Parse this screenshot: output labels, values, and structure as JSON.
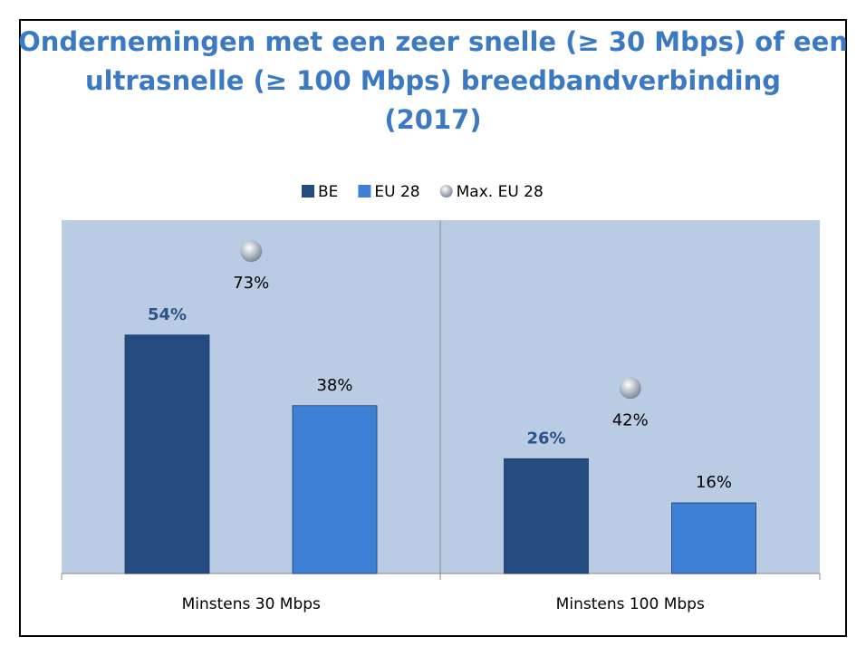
{
  "chart_data": {
    "type": "bar",
    "title_lines": [
      "Ondernemingen met een zeer snelle (≥ 30 Mbps) of een",
      "ultrasnelle (≥ 100 Mbps) breedbandverbinding",
      "(2017)"
    ],
    "categories": [
      "Minstens 30 Mbps",
      "Minstens 100 Mbps"
    ],
    "series": [
      {
        "name": "BE",
        "color": "#234b80",
        "marker": "bar",
        "values": [
          54,
          26
        ],
        "value_labels": [
          "54%",
          "26%"
        ]
      },
      {
        "name": "EU 28",
        "color": "#3d80d6",
        "marker": "bar",
        "values": [
          38,
          16
        ],
        "value_labels": [
          "38%",
          "16%"
        ]
      },
      {
        "name": "Max. EU 28",
        "color": "#aab3c4",
        "marker": "circle",
        "values": [
          73,
          42
        ],
        "value_labels": [
          "73%",
          "42%"
        ]
      }
    ],
    "ylim": [
      0,
      80
    ]
  }
}
